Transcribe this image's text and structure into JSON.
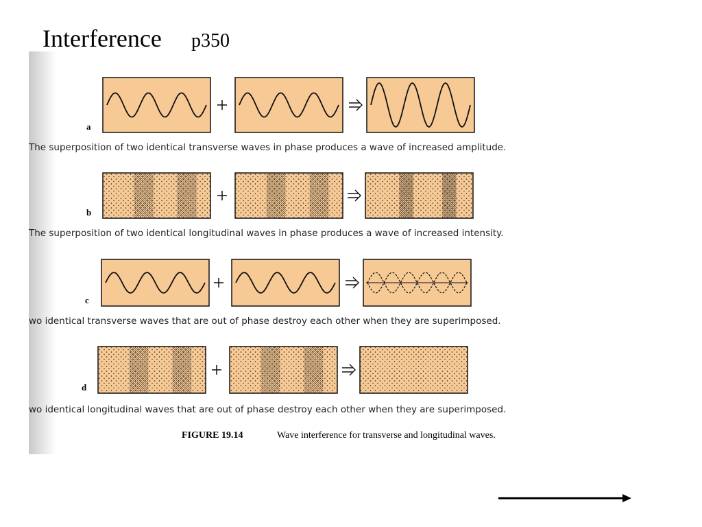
{
  "header": {
    "title": "Interference",
    "page": "p350"
  },
  "panels": [
    {
      "label": "a",
      "caption": "The superposition of two identical transverse waves in phase produces a wave of increased amplitude."
    },
    {
      "label": "b",
      "caption": "The superposition of two identical longitudinal waves in phase produces a wave of increased intensity."
    },
    {
      "label": "c",
      "caption": "wo identical transverse waves that are out of phase destroy each other when they are superimposed."
    },
    {
      "label": "d",
      "caption": "wo identical longitudinal waves that are out of phase destroy each other when they are superimposed."
    }
  ],
  "figure_caption": {
    "number": "FIGURE 19.14",
    "text": "Wave interference for transverse and longitudinal waves."
  }
}
